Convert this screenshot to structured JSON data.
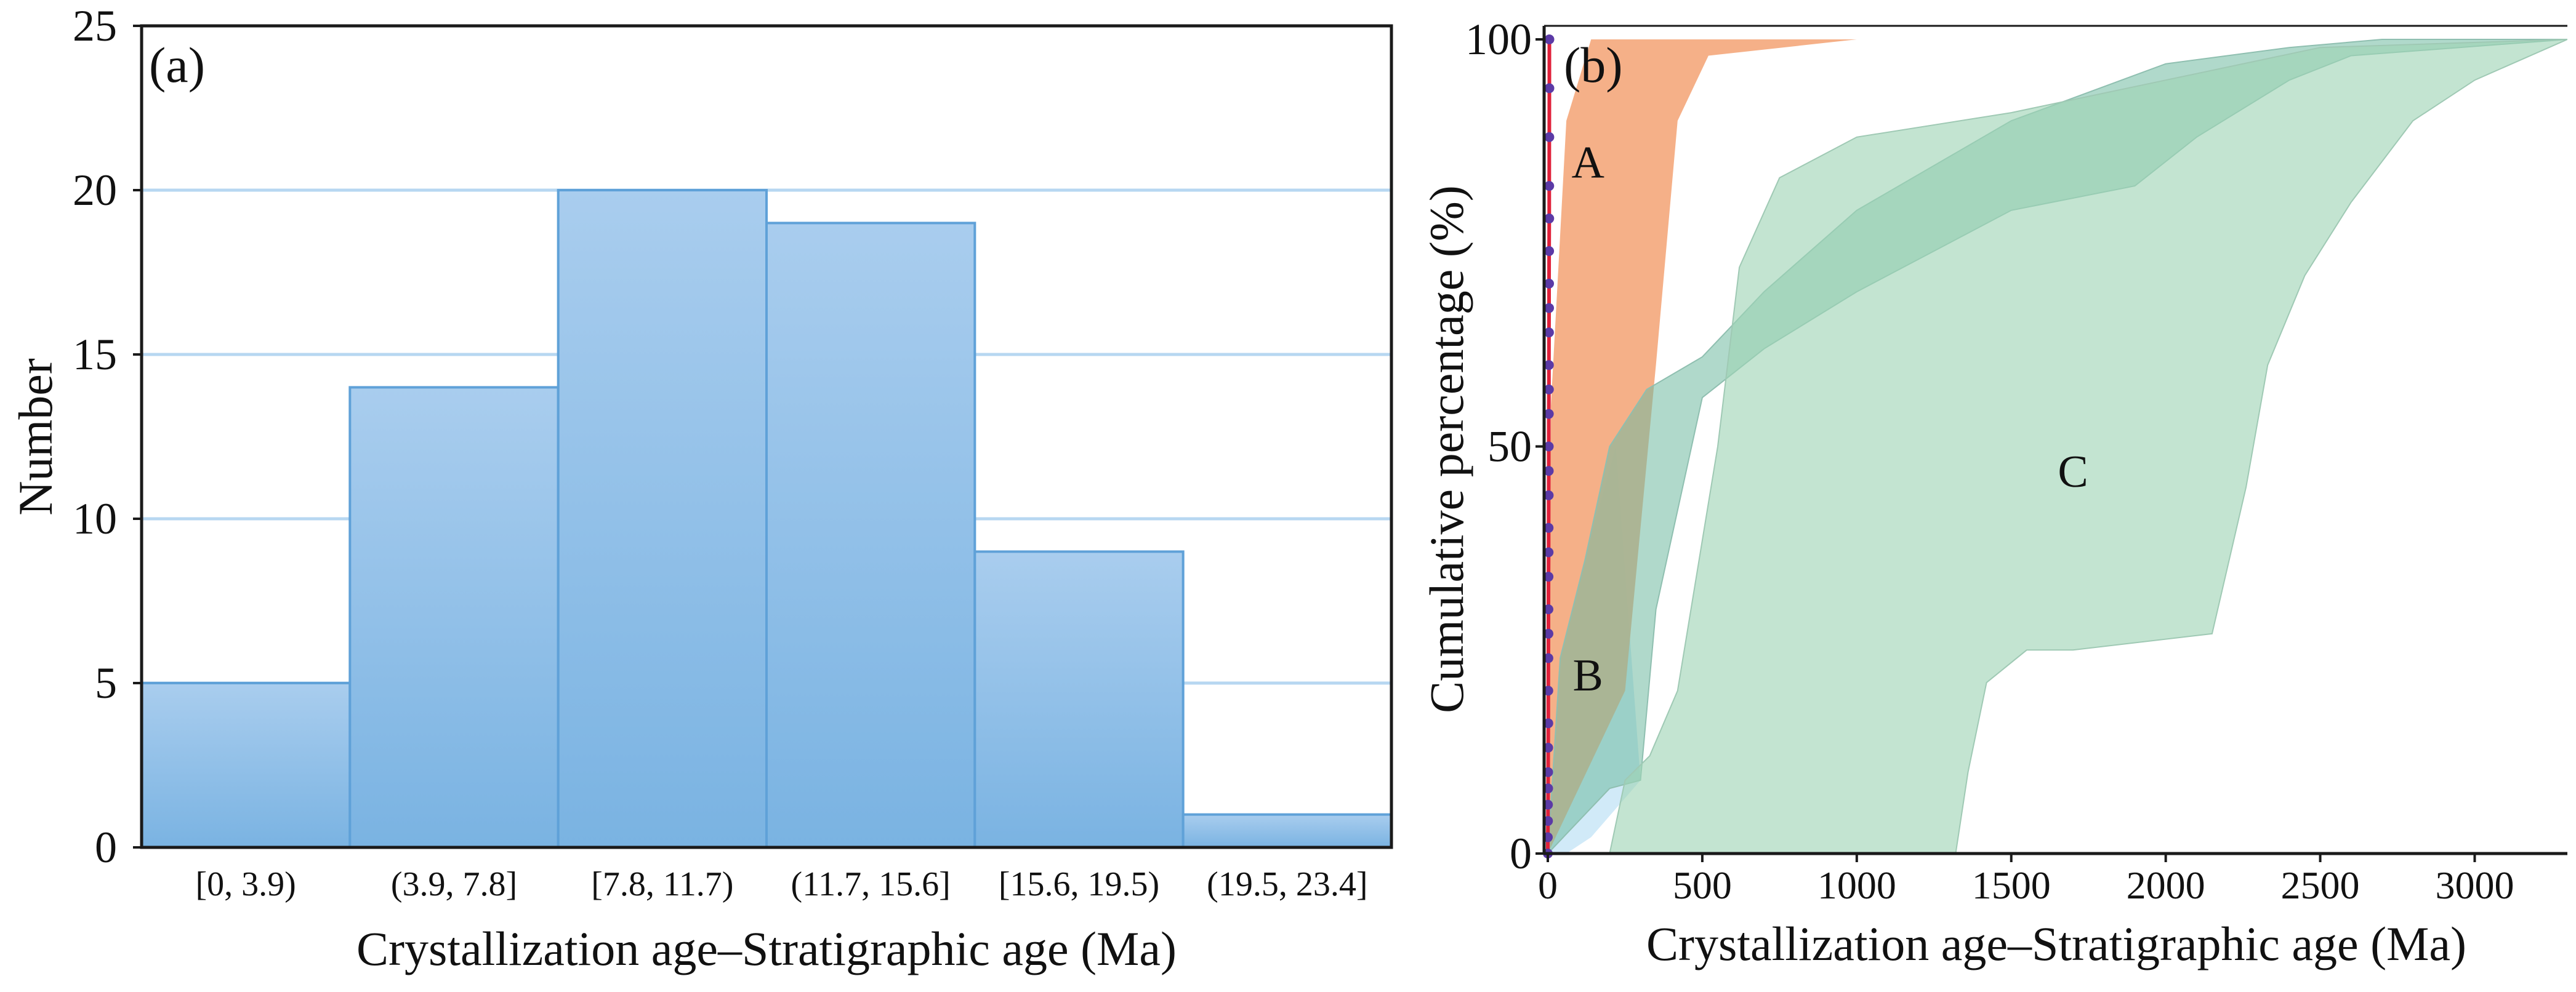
{
  "colors": {
    "bar_fill_top": "#a9cdee",
    "bar_fill_bottom": "#7ab3e2",
    "bar_edge": "#5fa1d8",
    "gridline": "#b7d7f1",
    "region_a": "#f4a97e",
    "region_a_overlap": "#d2c3b4",
    "region_b": "#cfe9f8",
    "region_c": "#9ed3b4",
    "region_c_overlap": "#6fb9a0",
    "curve_line": "#e0203a",
    "curve_marker": "#5b3aa6",
    "axis": "#1a1a1a"
  },
  "chart_data": [
    {
      "panel_label": "(a)",
      "type": "bar",
      "title": "",
      "xlabel": "Crystallization age–Stratigraphic age (Ma)",
      "ylabel": "Number",
      "categories": [
        "[0, 3.9)",
        "(3.9, 7.8]",
        "[7.8, 11.7)",
        "(11.7, 15.6]",
        "[15.6, 19.5)",
        "(19.5, 23.4]"
      ],
      "values": [
        5,
        14,
        20,
        19,
        9,
        1
      ],
      "ylim": [
        0,
        25
      ],
      "yticks": [
        0,
        5,
        10,
        15,
        20,
        25
      ],
      "grid": "horizontal"
    },
    {
      "panel_label": "(b)",
      "type": "area",
      "title": "",
      "xlabel": "Crystallization age–Stratigraphic age (Ma)",
      "ylabel": "Cumulative percentage (%)",
      "xlim": [
        0,
        3300
      ],
      "ylim": [
        0,
        100
      ],
      "xticks": [
        0,
        500,
        1000,
        1500,
        2000,
        2500,
        3000
      ],
      "yticks": [
        0,
        50,
        100
      ],
      "regions": [
        {
          "name": "A",
          "label_at": [
            130,
            85
          ],
          "upper": [
            [
              0,
              0
            ],
            [
              10,
              55
            ],
            [
              60,
              90
            ],
            [
              140,
              100
            ],
            [
              3300,
              100
            ]
          ],
          "lower": [
            [
              0,
              0
            ],
            [
              250,
              20
            ],
            [
              350,
              60
            ],
            [
              420,
              90
            ],
            [
              520,
              98
            ],
            [
              1000,
              100
            ],
            [
              3300,
              100
            ]
          ]
        },
        {
          "name": "B",
          "label_at": [
            130,
            22
          ],
          "upper": [
            [
              0,
              0
            ],
            [
              40,
              24
            ],
            [
              120,
              36
            ],
            [
              200,
              50
            ],
            [
              320,
              57
            ],
            [
              500,
              61
            ],
            [
              700,
              69
            ],
            [
              1000,
              79
            ],
            [
              1500,
              90
            ],
            [
              2000,
              97
            ],
            [
              2400,
              99
            ],
            [
              2700,
              100
            ],
            [
              3300,
              100
            ]
          ],
          "lower": [
            [
              0,
              0
            ],
            [
              100,
              4
            ],
            [
              200,
              8
            ],
            [
              300,
              9
            ],
            [
              350,
              30
            ],
            [
              500,
              56
            ],
            [
              700,
              62
            ],
            [
              1000,
              69
            ],
            [
              1500,
              79
            ],
            [
              1900,
              82
            ],
            [
              2100,
              88
            ],
            [
              2400,
              95
            ],
            [
              2600,
              98
            ],
            [
              3300,
              100
            ]
          ]
        },
        {
          "name": "C",
          "label_at": [
            1700,
            47
          ],
          "upper": [
            [
              200,
              0
            ],
            [
              250,
              9
            ],
            [
              330,
              12
            ],
            [
              420,
              20
            ],
            [
              550,
              50
            ],
            [
              620,
              72
            ],
            [
              750,
              83
            ],
            [
              1000,
              88
            ],
            [
              1500,
              91
            ],
            [
              2000,
              95
            ],
            [
              2500,
              99
            ],
            [
              3300,
              100
            ]
          ],
          "lower": [
            [
              1320,
              0
            ],
            [
              1360,
              10
            ],
            [
              1420,
              21
            ],
            [
              1550,
              25
            ],
            [
              1700,
              25
            ],
            [
              2150,
              27
            ],
            [
              2260,
              45
            ],
            [
              2330,
              60
            ],
            [
              2450,
              71
            ],
            [
              2600,
              80
            ],
            [
              2800,
              90
            ],
            [
              3000,
              95
            ],
            [
              3300,
              100
            ]
          ]
        }
      ],
      "series": [
        {
          "name": "cumulative",
          "x": [
            0,
            0,
            0.5,
            0.5,
            1,
            1,
            1.2,
            1.5,
            1.5,
            1.8,
            2,
            2,
            2.2,
            2.5,
            2.5,
            2.8,
            3,
            3,
            3.2,
            3.5,
            3.5,
            3.8,
            4,
            4,
            4.2,
            4.5,
            4.5,
            4.8,
            5,
            5
          ],
          "y": [
            0,
            2,
            4,
            6,
            8,
            10,
            13,
            16,
            20,
            24,
            27,
            30,
            34,
            37,
            40,
            44,
            47,
            50,
            54,
            57,
            60,
            64,
            67,
            70,
            74,
            78,
            82,
            88,
            94,
            100
          ]
        }
      ]
    }
  ]
}
